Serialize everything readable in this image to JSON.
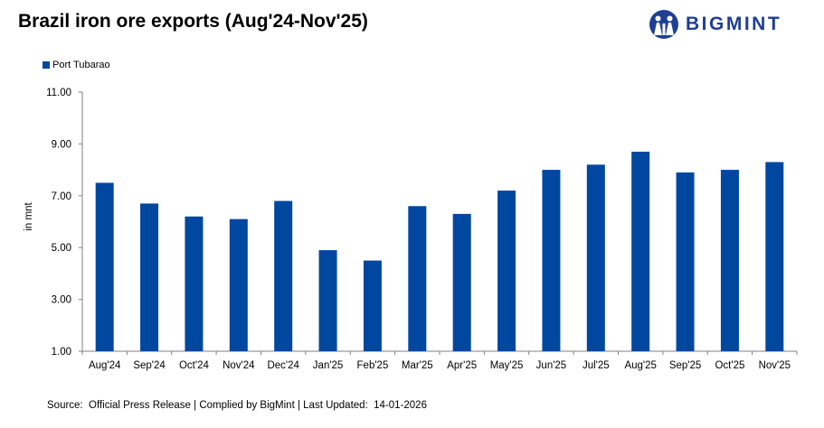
{
  "title": "Brazil iron ore exports (Aug'24-Nov'25)",
  "logo": {
    "text": "BIGMINT",
    "icon": "people-logo-icon",
    "color": "#1f3f93"
  },
  "legend": {
    "label": "Port Tubarao"
  },
  "source": "Source:  Official Press Release | Complied by BigMint | Last Updated:  14-01-2026",
  "chart_data": {
    "type": "bar",
    "title": "Brazil iron ore exports (Aug'24-Nov'25)",
    "xlabel": "",
    "ylabel": "in mnt",
    "ylim": [
      1.0,
      11.0
    ],
    "yticks": [
      "1.00",
      "3.00",
      "5.00",
      "7.00",
      "9.00",
      "11.00"
    ],
    "ytick_values": [
      1,
      3,
      5,
      7,
      9,
      11
    ],
    "categories": [
      "Aug'24",
      "Sep'24",
      "Oct'24",
      "Nov'24",
      "Dec'24",
      "Jan'25",
      "Feb'25",
      "Mar'25",
      "Apr'25",
      "May'25",
      "Jun'25",
      "Jul'25",
      "Aug'25",
      "Sep'25",
      "Oct'25",
      "Nov'25"
    ],
    "series": [
      {
        "name": "Port Tubarao",
        "color": "#0047a0",
        "values": [
          7.5,
          6.7,
          6.2,
          6.1,
          6.8,
          4.9,
          4.5,
          6.6,
          6.3,
          7.2,
          8.0,
          8.2,
          8.7,
          7.9,
          8.0,
          8.3
        ]
      }
    ],
    "grid": false,
    "legend": "top-left"
  }
}
